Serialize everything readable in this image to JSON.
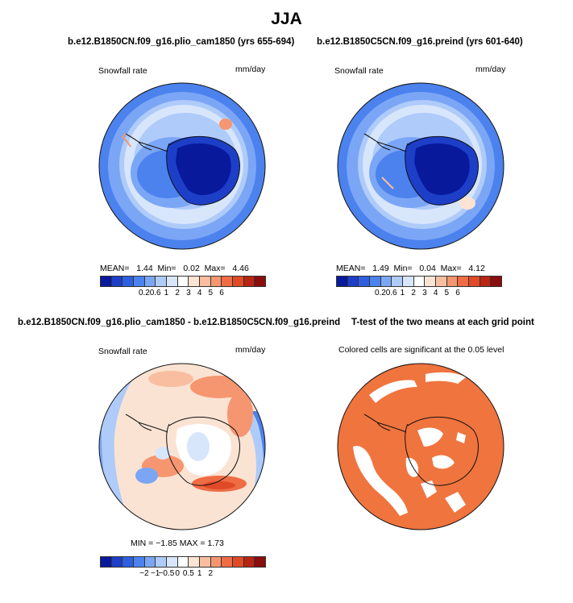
{
  "figure": {
    "title": "JJA",
    "panel_tl": {
      "title": "b.e12.B1850CN.f09_g16.plio_cam1850 (yrs 655-694)",
      "field_label": "Snowfall rate",
      "units": "mm/day",
      "stats": {
        "mean_label": "MEAN=",
        "mean": "1.44",
        "min_label": "Min=",
        "min": "0.02",
        "max_label": "Max=",
        "max": "4.46"
      }
    },
    "panel_tr": {
      "title": "b.e12.B1850C5CN.f09_g16.preind (yrs 601-640)",
      "field_label": "Snowfall rate",
      "units": "mm/day",
      "stats": {
        "mean_label": "MEAN=",
        "mean": "1.49",
        "min_label": "Min=",
        "min": "0.04",
        "max_label": "Max=",
        "max": "4.12"
      }
    },
    "panel_bl": {
      "title": "b.e12.B1850CN.f09_g16.plio_cam1850 - b.e12.B1850C5CN.f09_g16.preind",
      "field_label": "Snowfall rate",
      "units": "mm/day",
      "stats_text": "MIN = −1.85 MAX =   1.73"
    },
    "panel_br": {
      "title": "T-test of the two means at each grid point",
      "note": "Colored cells are significant at the 0.05 level"
    },
    "colorbar_abs": {
      "colors": [
        "#08199c",
        "#1d3fc8",
        "#2e5fe0",
        "#4b82ee",
        "#7ba6f6",
        "#aecbfa",
        "#d8e6fc",
        "#ffffff",
        "#fde3d4",
        "#f9bea0",
        "#f59670",
        "#ef6c45",
        "#e04a26",
        "#b82512",
        "#8c0d0d"
      ],
      "ticks": [
        "0.2",
        "0.6",
        "1",
        "2",
        "3",
        "4",
        "5",
        "6"
      ]
    },
    "colorbar_diff": {
      "colors": [
        "#08199c",
        "#1d3fc8",
        "#2e5fe0",
        "#4b82ee",
        "#7ba6f6",
        "#aecbfa",
        "#d8e6fc",
        "#ffffff",
        "#fde3d4",
        "#f9bea0",
        "#f59670",
        "#ef6c45",
        "#e04a26",
        "#b82512",
        "#8c0d0d"
      ],
      "ticks": [
        "−2",
        "−1",
        "−0.5",
        "0",
        "0.5",
        "1",
        "2"
      ]
    },
    "map_colors": {
      "ocean_abs": "#b6d2fb",
      "interior_dry": "#08199c",
      "coast_wet": "#4b82ee",
      "diff_base": "#fbe3d3",
      "significant": "#f0743e",
      "coastline": "#111111"
    }
  }
}
